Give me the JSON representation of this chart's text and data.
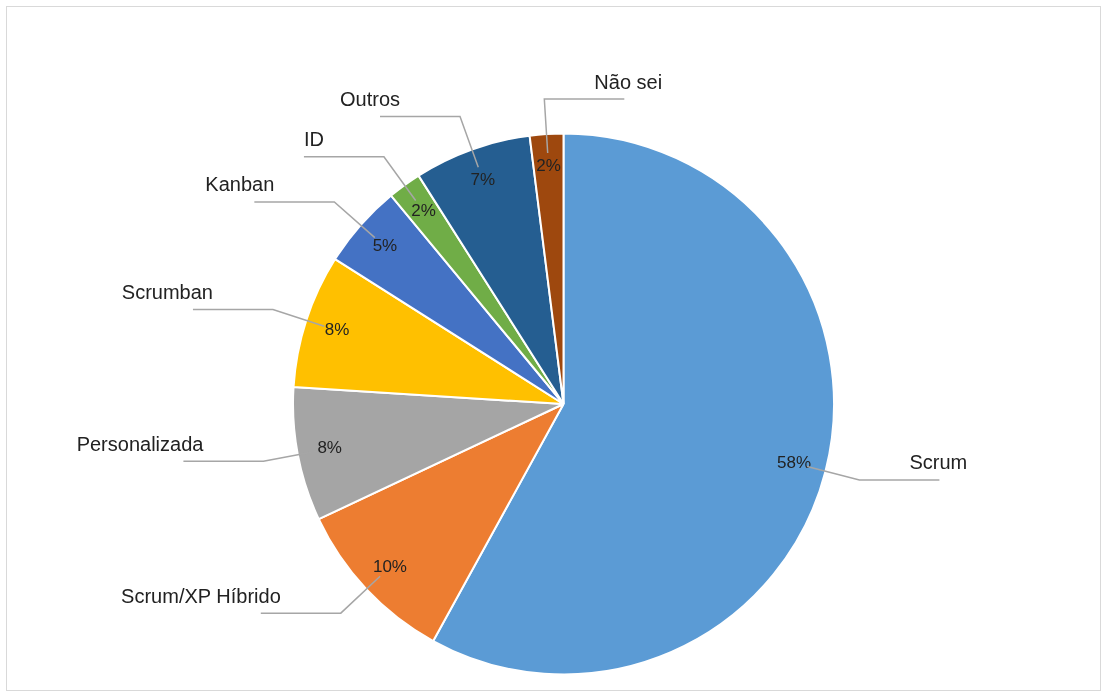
{
  "chart_data": {
    "type": "pie",
    "categories": [
      "Scrum",
      "Scrum/XP Híbrido",
      "Personalizada",
      "Scrumban",
      "Kanban",
      "ID",
      "Outros",
      "Não sei"
    ],
    "values": [
      58,
      10,
      8,
      8,
      5,
      2,
      7,
      2
    ],
    "colors": [
      "#5b9bd5",
      "#ed7d31",
      "#a5a5a5",
      "#ffc000",
      "#4472c4",
      "#70ad47",
      "#255e91",
      "#9e480e"
    ],
    "value_labels": [
      "58%",
      "10%",
      "8%",
      "8%",
      "5%",
      "2%",
      "7%",
      "2%"
    ],
    "legend": false
  }
}
